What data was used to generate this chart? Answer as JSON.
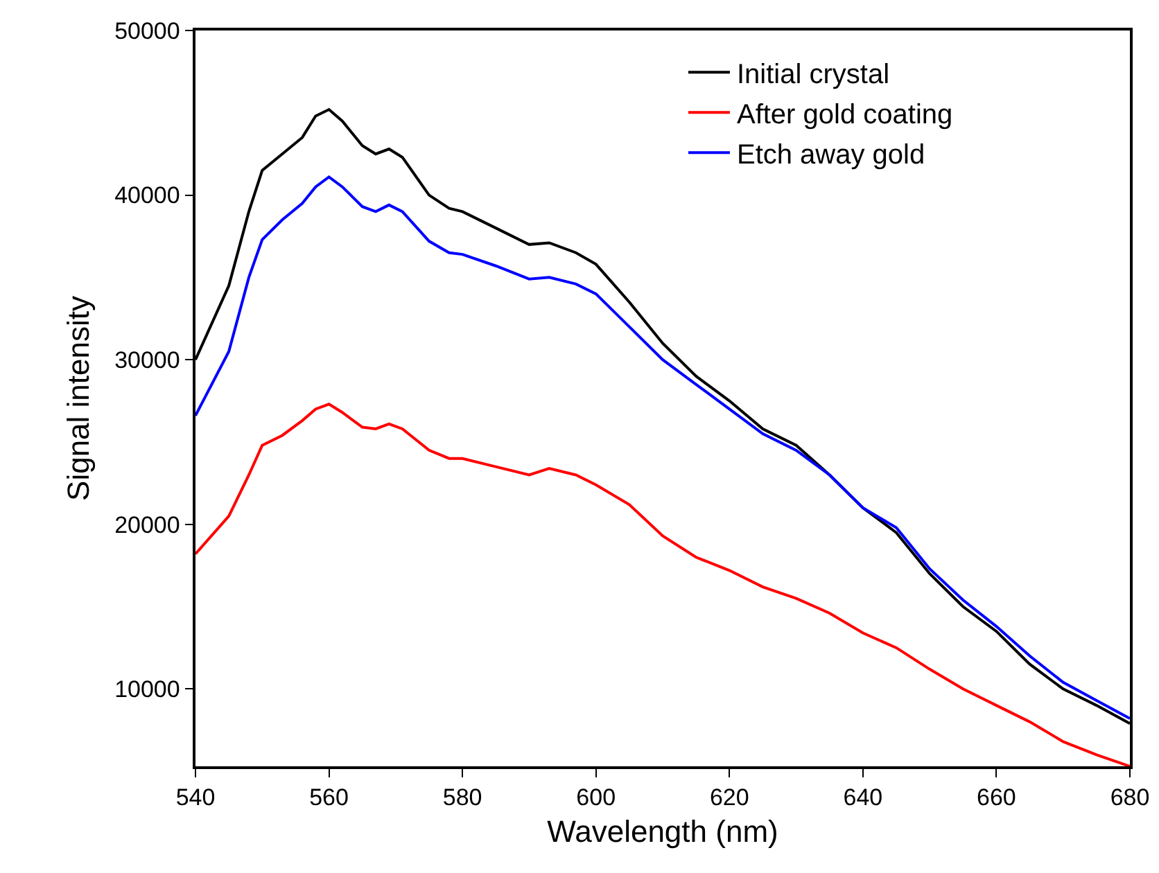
{
  "chart_data": {
    "type": "line",
    "xlabel": "Wavelength (nm)",
    "ylabel": "Signal intensity",
    "x": [
      540,
      545,
      548,
      550,
      553,
      556,
      558,
      560,
      562,
      565,
      567,
      569,
      571,
      575,
      578,
      580,
      585,
      590,
      593,
      597,
      600,
      605,
      610,
      615,
      620,
      625,
      630,
      635,
      640,
      645,
      650,
      655,
      660,
      665,
      670,
      675,
      680
    ],
    "series": [
      {
        "name": "Initial crystal",
        "color": "#000000",
        "values": [
          30000,
          34500,
          39000,
          41500,
          42500,
          43500,
          44800,
          45200,
          44500,
          43000,
          42500,
          42800,
          42300,
          40000,
          39200,
          39000,
          38000,
          37000,
          37100,
          36500,
          35800,
          33500,
          31000,
          29000,
          27500,
          25800,
          24800,
          23000,
          21000,
          19500,
          17000,
          15000,
          13500,
          11500,
          10000,
          9000,
          7900
        ]
      },
      {
        "name": "After gold coating",
        "color": "#ff0000",
        "values": [
          18200,
          20500,
          23000,
          24800,
          25400,
          26300,
          27000,
          27300,
          26800,
          25900,
          25800,
          26100,
          25800,
          24500,
          24000,
          24000,
          23500,
          23000,
          23400,
          23000,
          22400,
          21200,
          19300,
          18000,
          17200,
          16200,
          15500,
          14600,
          13400,
          12500,
          11200,
          10000,
          9000,
          8000,
          6800,
          6000,
          5300
        ]
      },
      {
        "name": "Etch away gold",
        "color": "#0000ff",
        "values": [
          26600,
          30500,
          35000,
          37300,
          38500,
          39500,
          40500,
          41100,
          40500,
          39300,
          39000,
          39400,
          39000,
          37200,
          36500,
          36400,
          35700,
          34900,
          35000,
          34600,
          34000,
          32000,
          30000,
          28500,
          27000,
          25500,
          24500,
          23000,
          21000,
          19800,
          17300,
          15400,
          13800,
          12000,
          10400,
          9300,
          8200
        ]
      }
    ],
    "xlim": [
      540,
      680
    ],
    "xticks": [
      540,
      560,
      580,
      600,
      620,
      640,
      660,
      680
    ],
    "ylim": [
      5300,
      50000
    ],
    "yticks": [
      10000,
      20000,
      30000,
      40000,
      50000
    ],
    "grid": false,
    "legend": "top right",
    "line_style": "solid"
  }
}
